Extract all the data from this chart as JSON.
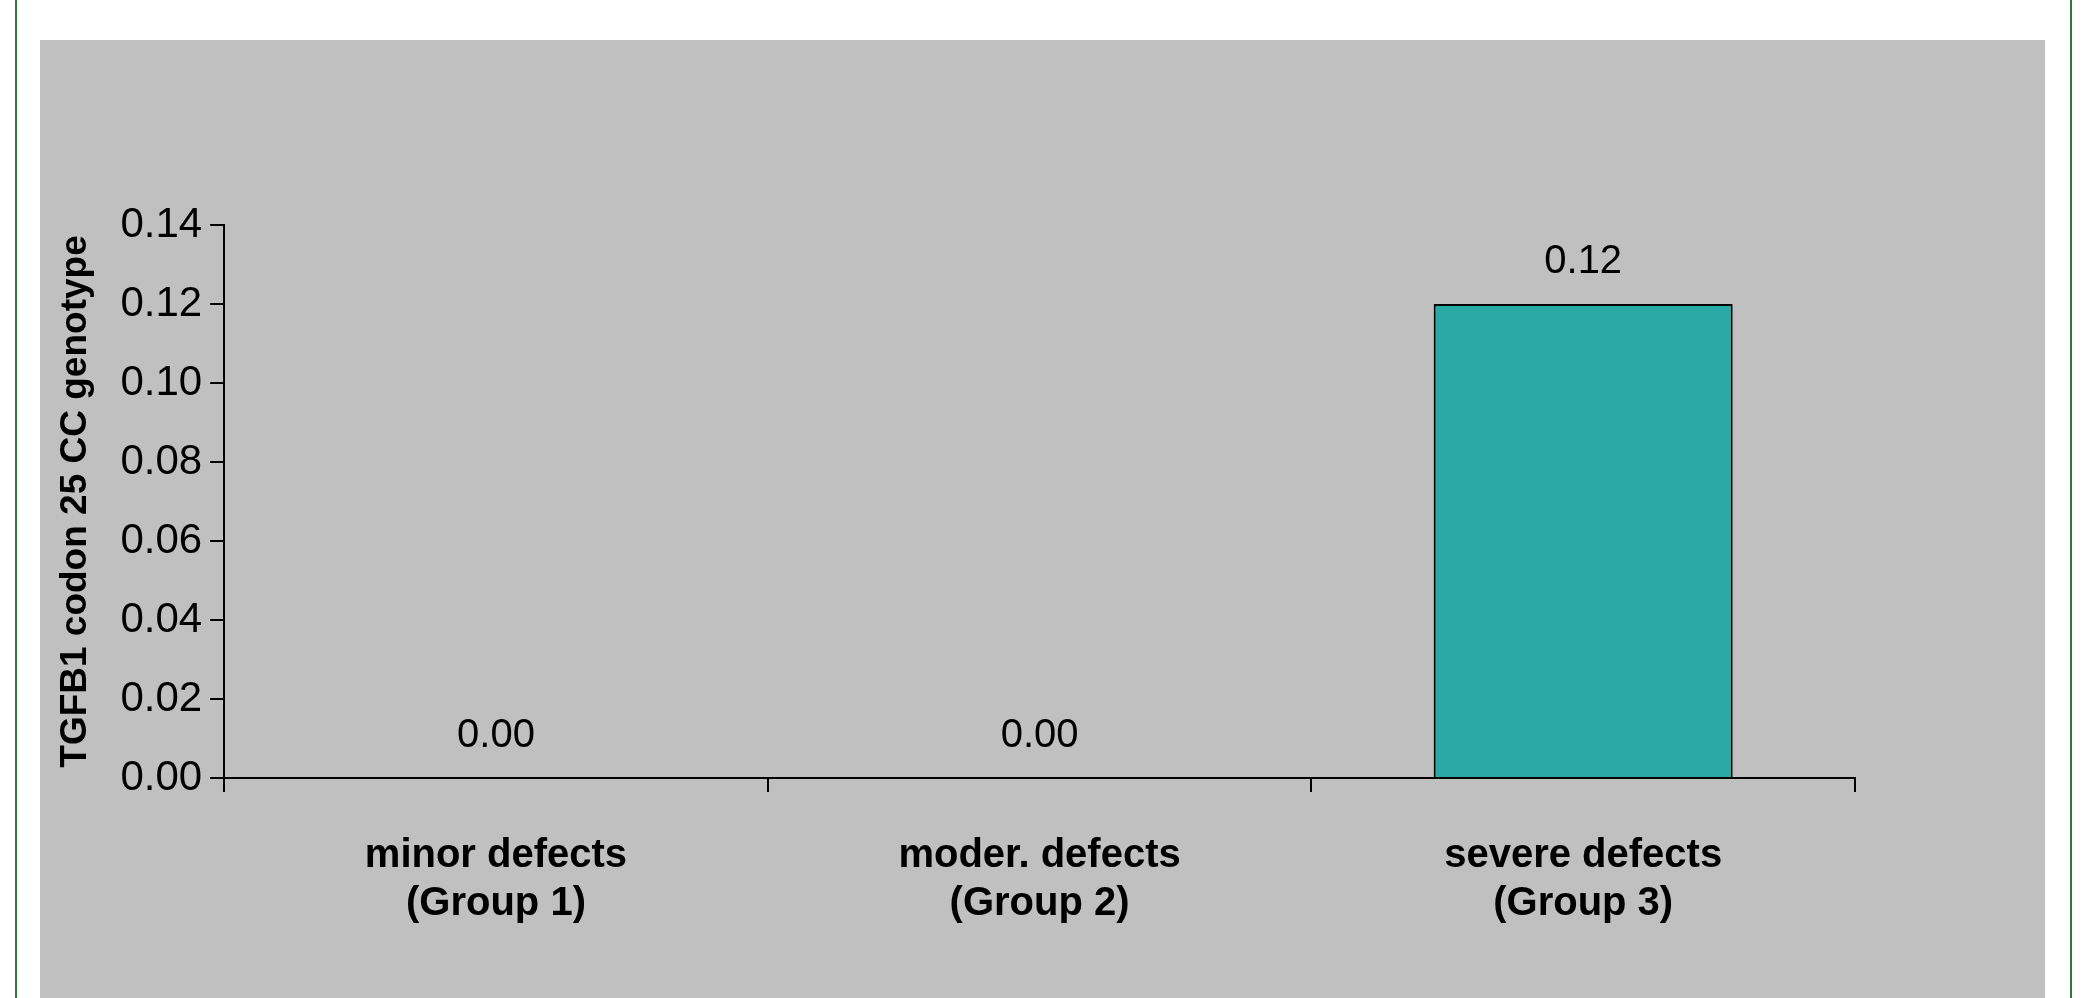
{
  "chart_data": {
    "type": "bar",
    "categories": [
      "minor defects\n(Group 1)",
      "moder. defects\n(Group 2)",
      "severe defects\n(Group 3)"
    ],
    "values": [
      0.0,
      0.0,
      0.12
    ],
    "value_labels": [
      "0.00",
      "0.00",
      "0.12"
    ],
    "color": "#2aaaa7",
    "ylabel": "TGFB1 codon 25 CC genotype",
    "ylim": [
      0,
      0.14
    ],
    "yticks": [
      {
        "value": 0,
        "label": "0.00"
      },
      0.02,
      0.04,
      0.06,
      0.08,
      {
        "value": 0.1,
        "label": "0.10"
      },
      0.12,
      0.14
    ],
    "grid": false,
    "legend": false
  }
}
